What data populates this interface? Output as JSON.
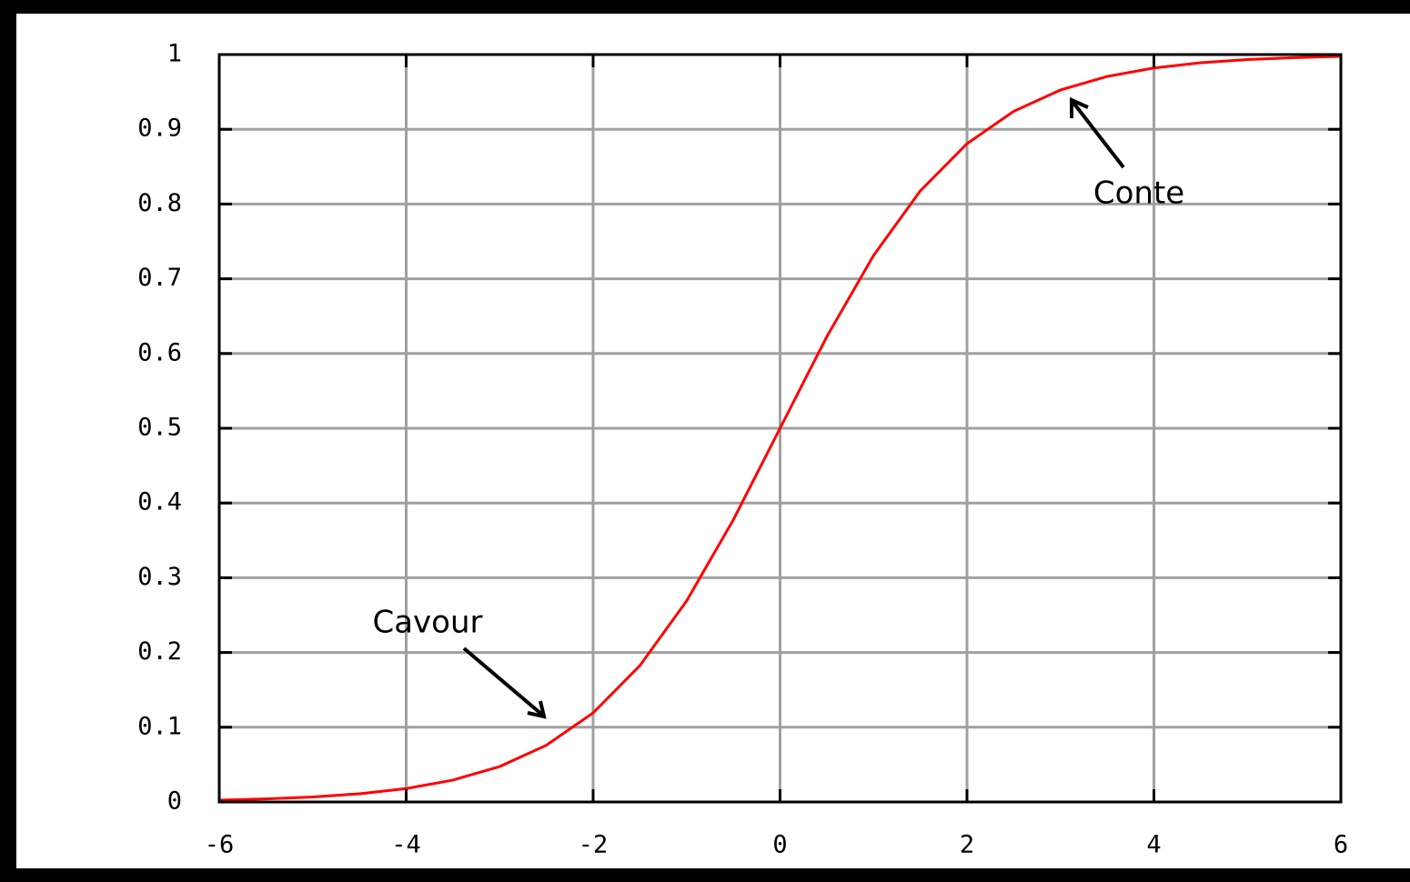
{
  "chart_data": {
    "type": "line",
    "x": [
      -6,
      -5.5,
      -5,
      -4.5,
      -4,
      -3.5,
      -3,
      -2.5,
      -2,
      -1.5,
      -1,
      -0.5,
      0,
      0.5,
      1,
      1.5,
      2,
      2.5,
      3,
      3.5,
      4,
      4.5,
      5,
      5.5,
      6
    ],
    "values": [
      0.0025,
      0.0041,
      0.0067,
      0.011,
      0.018,
      0.0293,
      0.0474,
      0.0759,
      0.1192,
      0.1824,
      0.2689,
      0.3775,
      0.5,
      0.6225,
      0.7311,
      0.8176,
      0.8808,
      0.9241,
      0.9526,
      0.9707,
      0.982,
      0.989,
      0.9933,
      0.9959,
      0.9975
    ],
    "color": "#ff0000",
    "xlim": [
      -6,
      6
    ],
    "xticks": [
      -6,
      -4,
      -2,
      0,
      2,
      4,
      6
    ],
    "ylim": [
      0,
      1
    ],
    "yticks": [
      0,
      0.1,
      0.2,
      0.3,
      0.4,
      0.5,
      0.6,
      0.7,
      0.8,
      0.9,
      1
    ],
    "grid": true,
    "grid_color": "#a0a0a0",
    "annotations": [
      "Cavour",
      "Conte"
    ]
  }
}
